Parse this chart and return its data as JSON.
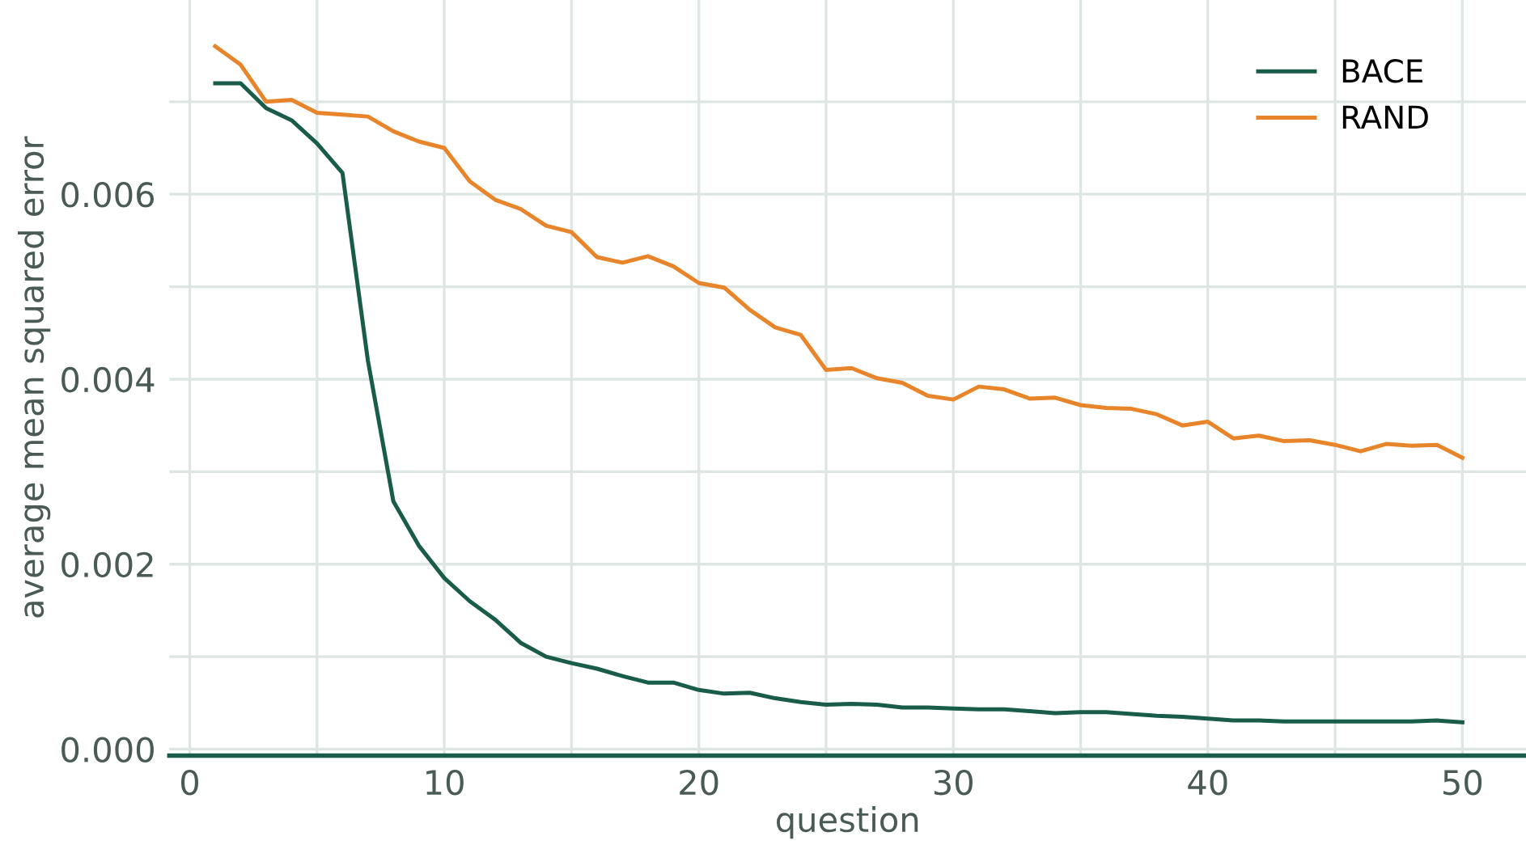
{
  "chart_data": {
    "type": "line",
    "xlabel": "question",
    "ylabel": "average mean squared error",
    "x": [
      1,
      2,
      3,
      4,
      5,
      6,
      7,
      8,
      9,
      10,
      11,
      12,
      13,
      14,
      15,
      16,
      17,
      18,
      19,
      20,
      21,
      22,
      23,
      24,
      25,
      26,
      27,
      28,
      29,
      30,
      31,
      32,
      33,
      34,
      35,
      36,
      37,
      38,
      39,
      40,
      41,
      42,
      43,
      44,
      45,
      46,
      47,
      48,
      49,
      50
    ],
    "series": [
      {
        "name": "BACE",
        "color": "#1a5c4a",
        "values": [
          0.0072,
          0.0072,
          0.00693,
          0.0068,
          0.00655,
          0.00623,
          0.0042,
          0.00268,
          0.0022,
          0.00185,
          0.0016,
          0.0014,
          0.00115,
          0.001,
          0.00093,
          0.00087,
          0.00079,
          0.00072,
          0.00072,
          0.00064,
          0.0006,
          0.00061,
          0.00055,
          0.00051,
          0.00048,
          0.00049,
          0.00048,
          0.00045,
          0.00045,
          0.00044,
          0.00043,
          0.00043,
          0.00041,
          0.00039,
          0.0004,
          0.0004,
          0.00038,
          0.00036,
          0.00035,
          0.00033,
          0.00031,
          0.00031,
          0.0003,
          0.0003,
          0.0003,
          0.0003,
          0.0003,
          0.0003,
          0.00031,
          0.00029
        ]
      },
      {
        "name": "RAND",
        "color": "#e8852a",
        "values": [
          0.0076,
          0.0074,
          0.007,
          0.00702,
          0.00688,
          0.00686,
          0.00684,
          0.00668,
          0.00657,
          0.0065,
          0.00614,
          0.00594,
          0.00584,
          0.00566,
          0.00559,
          0.00532,
          0.00526,
          0.00533,
          0.00522,
          0.00504,
          0.00499,
          0.00475,
          0.00456,
          0.00448,
          0.0041,
          0.00412,
          0.00401,
          0.00396,
          0.00382,
          0.00378,
          0.00392,
          0.00389,
          0.00379,
          0.0038,
          0.00372,
          0.00369,
          0.00368,
          0.00362,
          0.0035,
          0.00354,
          0.00336,
          0.00339,
          0.00333,
          0.00334,
          0.00329,
          0.00322,
          0.0033,
          0.00328,
          0.00329,
          0.00315
        ]
      }
    ],
    "xlim": [
      -0.8,
      52.5
    ],
    "ylim": [
      -7e-05,
      0.0081
    ],
    "xticks": [
      0,
      {
        "value": 5,
        "label": null
      },
      10,
      {
        "value": 15,
        "label": null
      },
      20,
      {
        "value": 25,
        "label": null
      },
      30,
      {
        "value": 35,
        "label": null
      },
      40,
      {
        "value": 45,
        "label": null
      },
      50
    ],
    "yticks": [
      {
        "value": 0,
        "label": "0.000"
      },
      {
        "value": 0.001,
        "label": null
      },
      {
        "value": 0.002,
        "label": "0.002"
      },
      {
        "value": 0.003,
        "label": null
      },
      {
        "value": 0.004,
        "label": "0.004"
      },
      {
        "value": 0.005,
        "label": null
      },
      {
        "value": 0.006,
        "label": "0.006"
      },
      {
        "value": 0.007,
        "label": null
      }
    ],
    "grid": true,
    "legend": "top right"
  }
}
